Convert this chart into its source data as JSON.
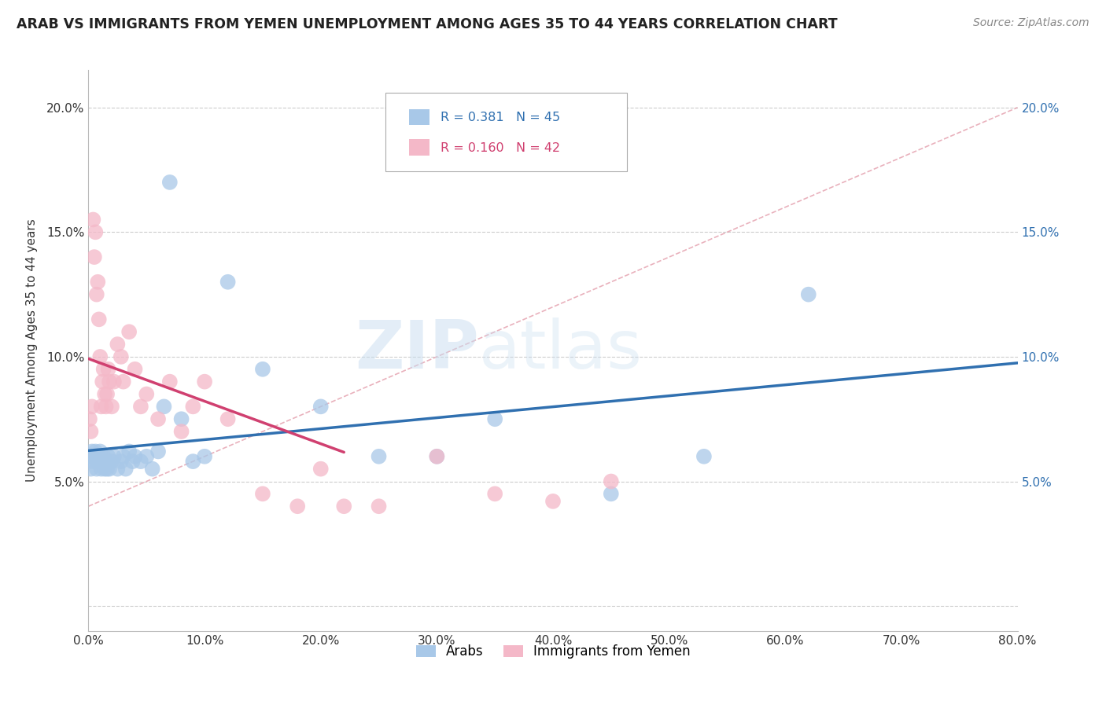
{
  "title": "ARAB VS IMMIGRANTS FROM YEMEN UNEMPLOYMENT AMONG AGES 35 TO 44 YEARS CORRELATION CHART",
  "source": "Source: ZipAtlas.com",
  "ylabel": "Unemployment Among Ages 35 to 44 years",
  "legend1_R": "0.381",
  "legend1_N": "45",
  "legend2_R": "0.160",
  "legend2_N": "42",
  "arab_color": "#a8c8e8",
  "yemen_color": "#f4b8c8",
  "arab_line_color": "#3070b0",
  "yemen_line_color": "#d04070",
  "dashed_color": "#e090a0",
  "xlim": [
    0.0,
    0.8
  ],
  "ylim": [
    -0.01,
    0.215
  ],
  "xticks": [
    0.0,
    0.1,
    0.2,
    0.3,
    0.4,
    0.5,
    0.6,
    0.7,
    0.8
  ],
  "yticks": [
    0.0,
    0.05,
    0.1,
    0.15,
    0.2
  ],
  "arab_x": [
    0.001,
    0.002,
    0.003,
    0.004,
    0.005,
    0.006,
    0.007,
    0.008,
    0.009,
    0.01,
    0.011,
    0.012,
    0.013,
    0.014,
    0.015,
    0.016,
    0.017,
    0.018,
    0.02,
    0.022,
    0.025,
    0.028,
    0.03,
    0.032,
    0.035,
    0.038,
    0.04,
    0.045,
    0.05,
    0.055,
    0.06,
    0.065,
    0.07,
    0.08,
    0.09,
    0.1,
    0.12,
    0.15,
    0.2,
    0.25,
    0.3,
    0.35,
    0.45,
    0.53,
    0.62
  ],
  "arab_y": [
    0.06,
    0.055,
    0.062,
    0.058,
    0.06,
    0.062,
    0.055,
    0.058,
    0.06,
    0.062,
    0.055,
    0.058,
    0.06,
    0.055,
    0.058,
    0.055,
    0.06,
    0.055,
    0.058,
    0.06,
    0.055,
    0.058,
    0.06,
    0.055,
    0.062,
    0.058,
    0.06,
    0.058,
    0.06,
    0.055,
    0.062,
    0.08,
    0.17,
    0.075,
    0.058,
    0.06,
    0.13,
    0.095,
    0.08,
    0.06,
    0.06,
    0.075,
    0.045,
    0.06,
    0.125
  ],
  "yemen_x": [
    0.001,
    0.002,
    0.003,
    0.004,
    0.005,
    0.006,
    0.007,
    0.008,
    0.009,
    0.01,
    0.011,
    0.012,
    0.013,
    0.014,
    0.015,
    0.016,
    0.017,
    0.018,
    0.02,
    0.022,
    0.025,
    0.028,
    0.03,
    0.035,
    0.04,
    0.045,
    0.05,
    0.06,
    0.07,
    0.08,
    0.09,
    0.1,
    0.12,
    0.15,
    0.18,
    0.2,
    0.22,
    0.25,
    0.3,
    0.35,
    0.4,
    0.45
  ],
  "yemen_y": [
    0.075,
    0.07,
    0.08,
    0.155,
    0.14,
    0.15,
    0.125,
    0.13,
    0.115,
    0.1,
    0.08,
    0.09,
    0.095,
    0.085,
    0.08,
    0.085,
    0.095,
    0.09,
    0.08,
    0.09,
    0.105,
    0.1,
    0.09,
    0.11,
    0.095,
    0.08,
    0.085,
    0.075,
    0.09,
    0.07,
    0.08,
    0.09,
    0.075,
    0.045,
    0.04,
    0.055,
    0.04,
    0.04,
    0.06,
    0.045,
    0.042,
    0.05
  ],
  "watermark_top": "ZIP",
  "watermark_bottom": "atlas",
  "background_color": "#ffffff"
}
